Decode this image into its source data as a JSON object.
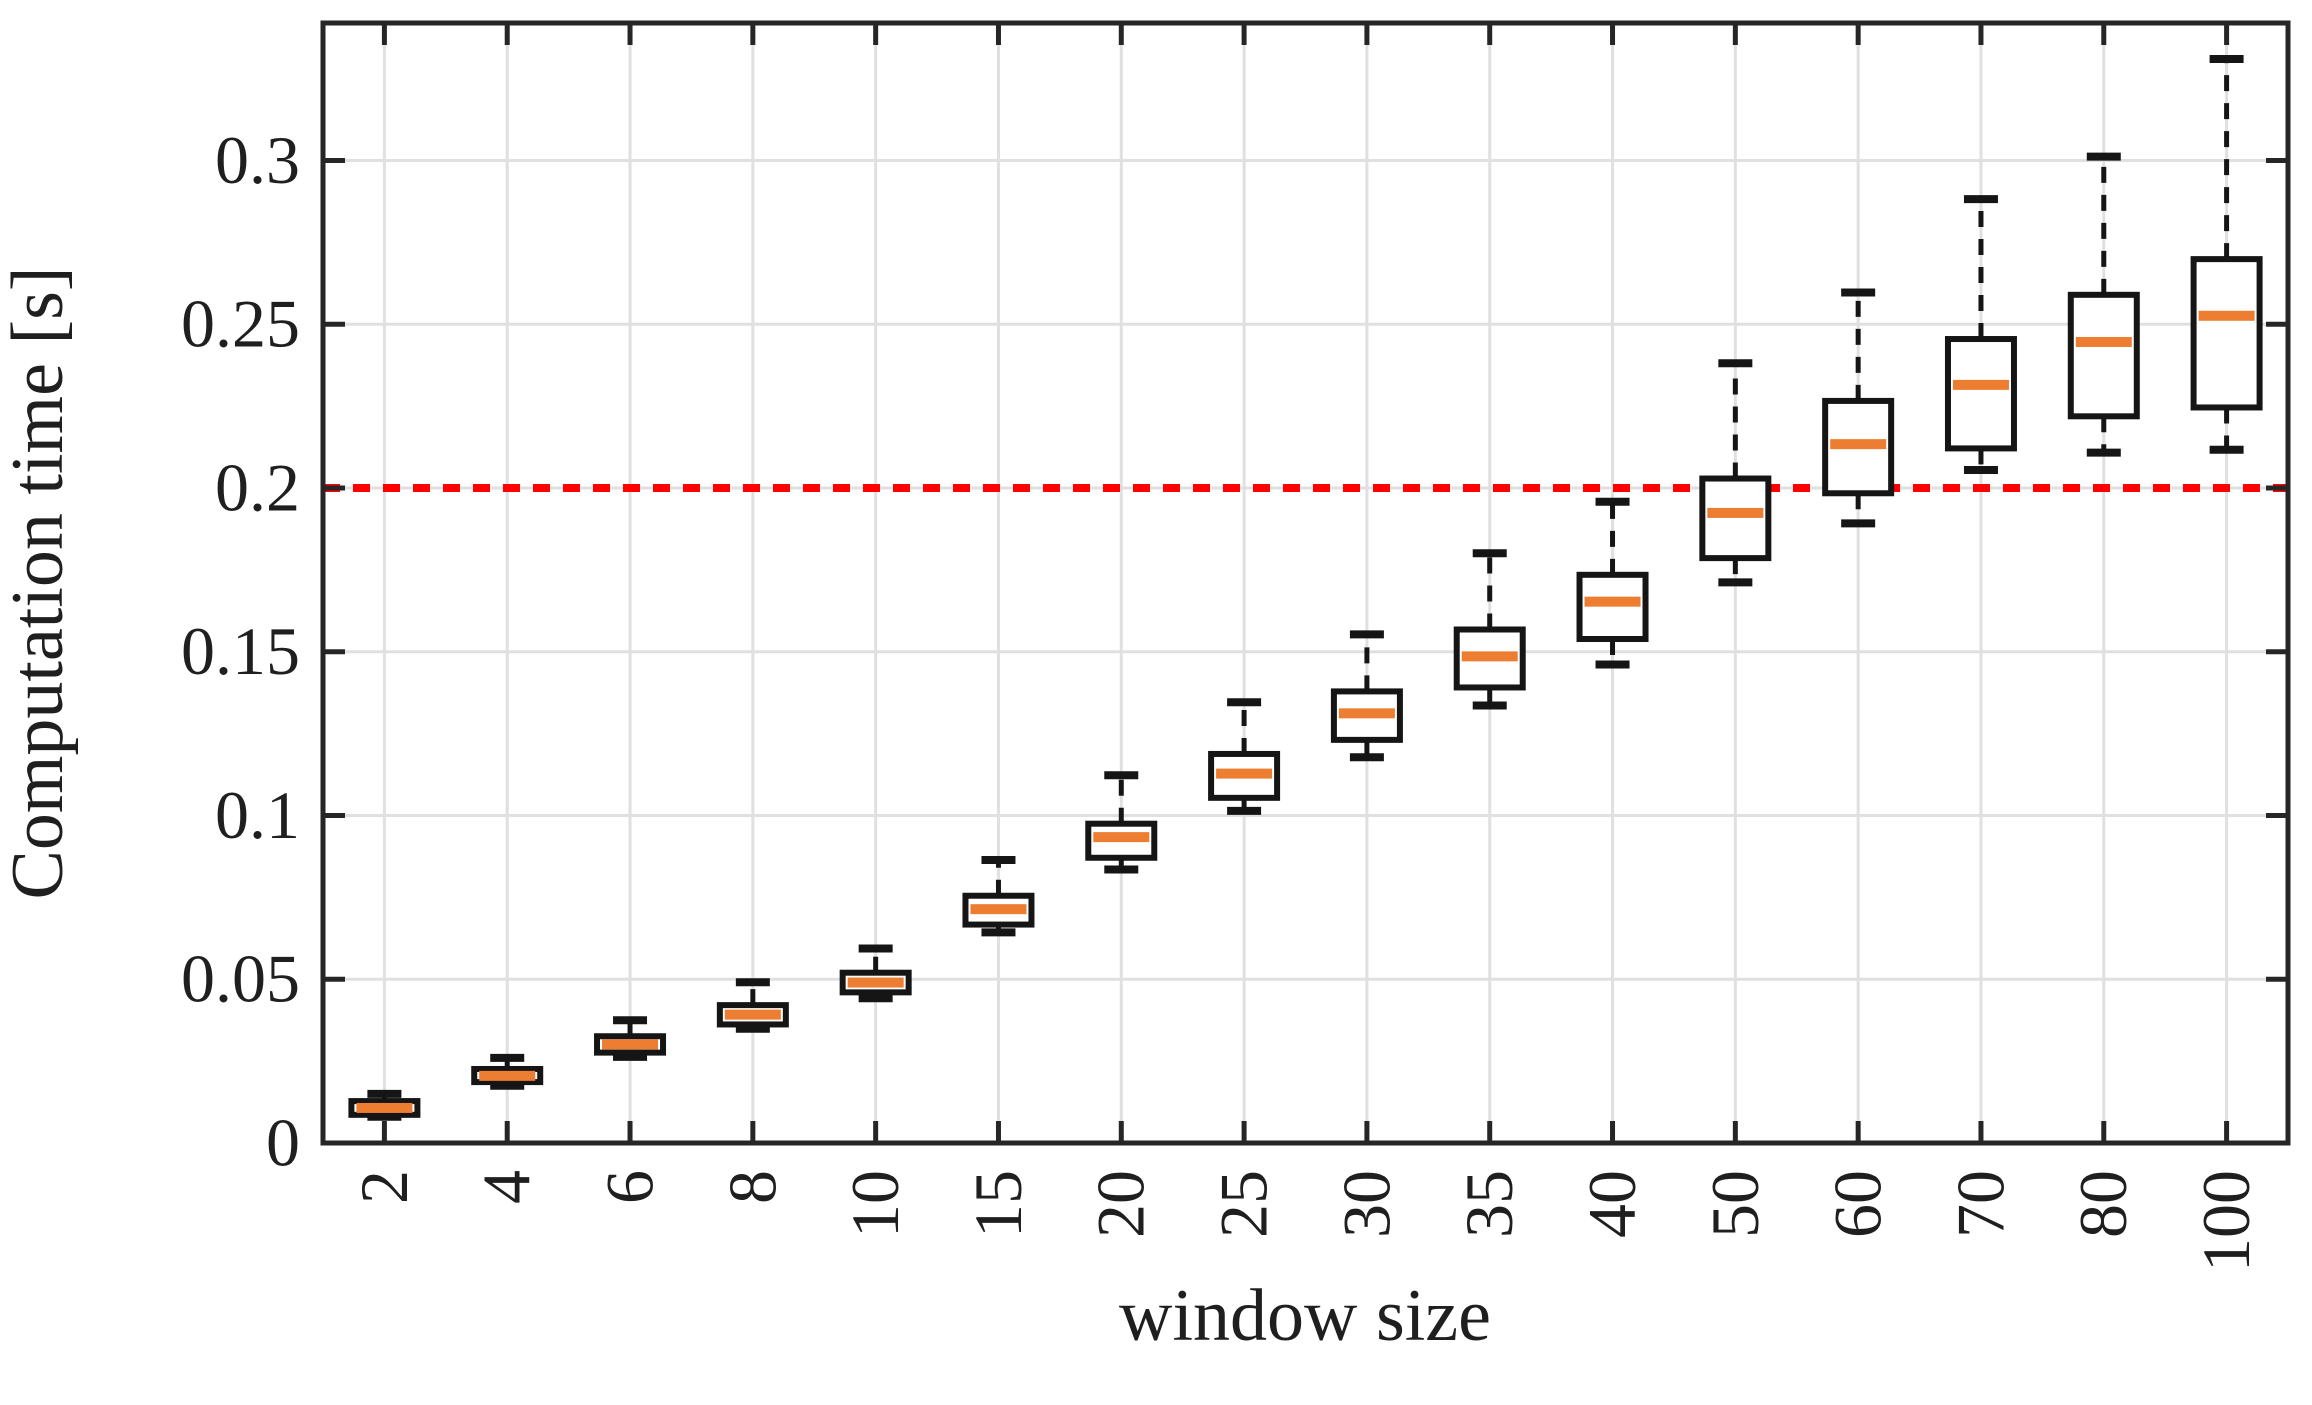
{
  "chart_data": {
    "type": "boxplot",
    "title": "",
    "xlabel": "window size",
    "ylabel": "Computation time [s]",
    "categories": [
      "2",
      "4",
      "6",
      "8",
      "10",
      "15",
      "20",
      "25",
      "30",
      "35",
      "40",
      "50",
      "60",
      "70",
      "80",
      "100"
    ],
    "boxes": [
      {
        "label": "2",
        "lo": 0.008,
        "q1": 0.0086,
        "med": 0.0107,
        "q3": 0.0128,
        "hi": 0.015
      },
      {
        "label": "4",
        "lo": 0.0175,
        "q1": 0.0186,
        "med": 0.0205,
        "q3": 0.0226,
        "hi": 0.026
      },
      {
        "label": "6",
        "lo": 0.0263,
        "q1": 0.0276,
        "med": 0.0301,
        "q3": 0.0326,
        "hi": 0.0375
      },
      {
        "label": "8",
        "lo": 0.0349,
        "q1": 0.0362,
        "med": 0.0392,
        "q3": 0.0421,
        "hi": 0.0491
      },
      {
        "label": "10",
        "lo": 0.0442,
        "q1": 0.046,
        "med": 0.049,
        "q3": 0.052,
        "hi": 0.0594
      },
      {
        "label": "15",
        "lo": 0.0643,
        "q1": 0.0667,
        "med": 0.0714,
        "q3": 0.0755,
        "hi": 0.0864
      },
      {
        "label": "20",
        "lo": 0.0835,
        "q1": 0.0871,
        "med": 0.0934,
        "q3": 0.0975,
        "hi": 0.1123
      },
      {
        "label": "25",
        "lo": 0.1014,
        "q1": 0.1054,
        "med": 0.1128,
        "q3": 0.1188,
        "hi": 0.1346
      },
      {
        "label": "30",
        "lo": 0.1178,
        "q1": 0.1231,
        "med": 0.1312,
        "q3": 0.1379,
        "hi": 0.1553
      },
      {
        "label": "35",
        "lo": 0.1336,
        "q1": 0.1391,
        "med": 0.1486,
        "q3": 0.1568,
        "hi": 0.1801
      },
      {
        "label": "40",
        "lo": 0.1461,
        "q1": 0.1539,
        "med": 0.1653,
        "q3": 0.1735,
        "hi": 0.1958
      },
      {
        "label": "50",
        "lo": 0.1712,
        "q1": 0.1786,
        "med": 0.1924,
        "q3": 0.2029,
        "hi": 0.2381
      },
      {
        "label": "60",
        "lo": 0.1892,
        "q1": 0.1984,
        "med": 0.2134,
        "q3": 0.2266,
        "hi": 0.2597
      },
      {
        "label": "70",
        "lo": 0.2055,
        "q1": 0.2121,
        "med": 0.2315,
        "q3": 0.2455,
        "hi": 0.2882
      },
      {
        "label": "80",
        "lo": 0.2108,
        "q1": 0.2219,
        "med": 0.2446,
        "q3": 0.259,
        "hi": 0.3012
      },
      {
        "label": "100",
        "lo": 0.2117,
        "q1": 0.2246,
        "med": 0.2526,
        "q3": 0.2699,
        "hi": 0.331
      }
    ],
    "yticks": [
      {
        "value": 0,
        "label": "0"
      },
      {
        "value": 0.05,
        "label": "0.05"
      },
      {
        "value": 0.1,
        "label": "0.1"
      },
      {
        "value": 0.15,
        "label": "0.15"
      },
      {
        "value": 0.2,
        "label": "0.2"
      },
      {
        "value": 0.25,
        "label": "0.25"
      },
      {
        "value": 0.3,
        "label": "0.3"
      }
    ],
    "ylim": [
      0,
      0.342
    ],
    "grid": true,
    "legend": null,
    "threshold": {
      "value": 0.2,
      "label": "",
      "color": "#FF0000",
      "style": "dotted"
    },
    "colors": {
      "median": "#ED7D31",
      "box_edge": "#151515",
      "whisker": "#151515",
      "grid": "#E0E0E0",
      "axis": "#262626",
      "text": "#1f1f1f",
      "background": "#ffffff",
      "threshold": "#FF0000"
    }
  }
}
